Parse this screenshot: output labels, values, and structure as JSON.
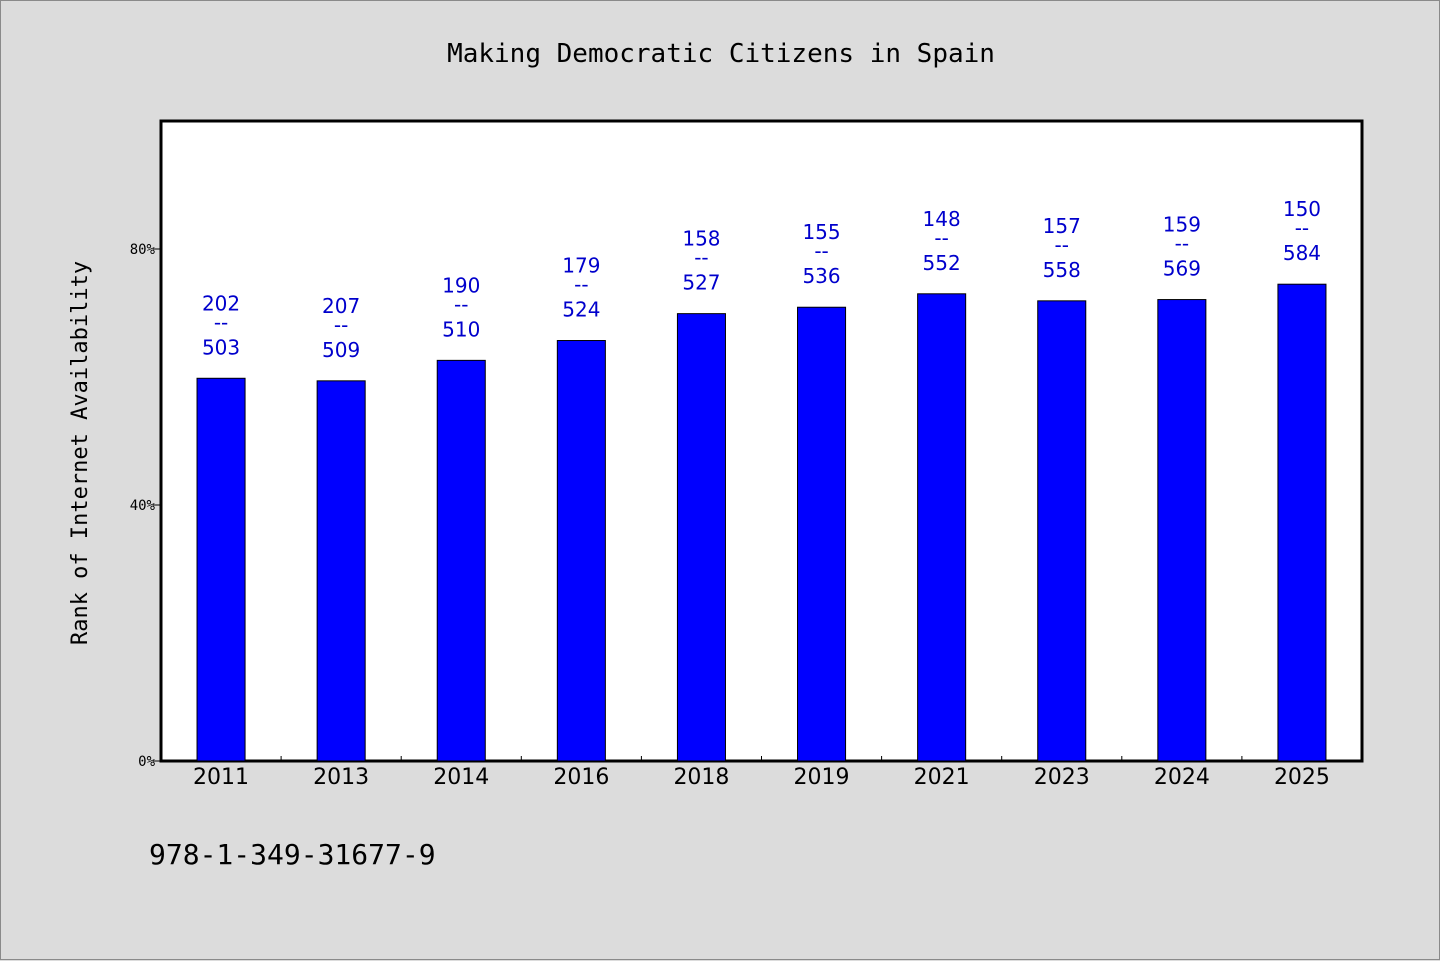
{
  "colors": {
    "background": "#dcdcdc",
    "plot_background": "#ffffff",
    "bar": "#0000ff",
    "label": "#0000cc",
    "axis": "#000000"
  },
  "footnote": "978-1-349-31677-9",
  "chart_data": {
    "type": "bar",
    "title": "Making Democratic Citizens in Spain",
    "xlabel": "",
    "ylabel": "Rank of Internet Availability",
    "ylim": [
      0,
      100
    ],
    "yticks": [
      0,
      40,
      80
    ],
    "ytick_labels": [
      "0%",
      "40%",
      "80%"
    ],
    "grid": false,
    "categories": [
      "2011",
      "2013",
      "2014",
      "2016",
      "2018",
      "2019",
      "2021",
      "2023",
      "2024",
      "2025"
    ],
    "values": [
      59.8,
      59.4,
      62.6,
      65.7,
      69.9,
      70.9,
      73.0,
      71.9,
      72.1,
      74.5
    ],
    "labels_top": [
      "202",
      "207",
      "190",
      "179",
      "158",
      "155",
      "148",
      "157",
      "159",
      "150"
    ],
    "labels_sep": "--",
    "labels_bottom": [
      "503",
      "509",
      "510",
      "524",
      "527",
      "536",
      "552",
      "558",
      "569",
      "584"
    ]
  }
}
